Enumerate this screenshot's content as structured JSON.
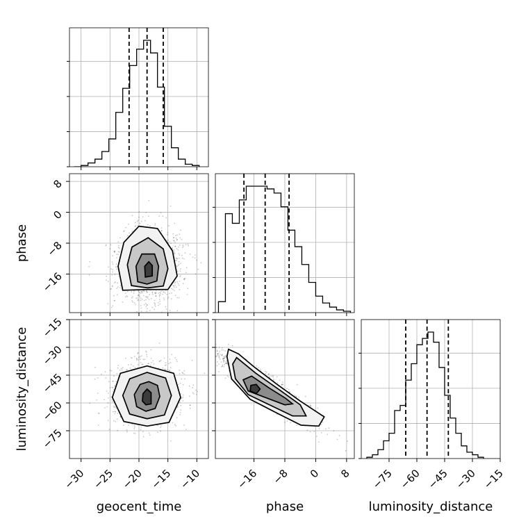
{
  "chart_data": {
    "type": "corner",
    "parameters": [
      "geocent_time",
      "phase",
      "luminosity_distance"
    ],
    "axis_labels": {
      "geocent_time": "geocent_time",
      "phase": "phase",
      "luminosity_distance": "luminosity_distance"
    },
    "ranges": {
      "geocent_time": [
        -32,
        -8
      ],
      "phase": [
        -26,
        10
      ],
      "luminosity_distance": [
        -90,
        -15
      ]
    },
    "ticks": {
      "geocent_time": {
        "values": [
          -30,
          -25,
          -20,
          -15,
          -10
        ],
        "labels": [
          "−30",
          "−25",
          "−20",
          "−15",
          "−10"
        ]
      },
      "phase": {
        "values": [
          -16,
          -8,
          0,
          8
        ],
        "labels": [
          "−16",
          "−8",
          "0",
          "8"
        ]
      },
      "luminosity_distance": {
        "values": [
          -75,
          -60,
          -45,
          -30,
          -15
        ],
        "labels": [
          "−75",
          "−60",
          "−45",
          "−30",
          "−15"
        ]
      }
    },
    "grid": true,
    "histograms": {
      "geocent_time": {
        "edges": [
          -31.2,
          -30.0,
          -28.8,
          -27.6,
          -26.4,
          -25.2,
          -24.0,
          -22.8,
          -21.6,
          -20.4,
          -19.2,
          -18.0,
          -16.8,
          -15.6,
          -14.4,
          -13.2,
          -12.0,
          -10.8,
          -9.6
        ],
        "counts": [
          0,
          0.01,
          0.03,
          0.06,
          0.12,
          0.22,
          0.43,
          0.62,
          0.8,
          0.93,
          1.0,
          0.9,
          0.63,
          0.32,
          0.15,
          0.06,
          0.02,
          0.01
        ]
      },
      "phase": {
        "edges": [
          -25.2,
          -23.4,
          -21.6,
          -19.8,
          -18.0,
          -16.2,
          -14.4,
          -12.6,
          -10.8,
          -9.0,
          -7.2,
          -5.4,
          -3.6,
          -1.8,
          0.0,
          1.8,
          3.6,
          5.4,
          7.2,
          9.0
        ],
        "counts": [
          0.08,
          0.72,
          0.65,
          0.82,
          0.92,
          0.92,
          0.92,
          0.9,
          0.87,
          0.77,
          0.6,
          0.48,
          0.35,
          0.22,
          0.12,
          0.07,
          0.04,
          0.02,
          0.01
        ]
      },
      "luminosity_distance": {
        "edges": [
          -87.0,
          -84.0,
          -81.0,
          -78.0,
          -75.0,
          -72.0,
          -69.0,
          -66.0,
          -63.0,
          -60.0,
          -57.0,
          -54.0,
          -51.0,
          -48.0,
          -45.0,
          -42.0,
          -39.0,
          -36.0,
          -33.0,
          -30.0,
          -27.0,
          -24.0
        ],
        "counts": [
          0.01,
          0.03,
          0.07,
          0.14,
          0.2,
          0.38,
          0.42,
          0.62,
          0.75,
          0.9,
          0.95,
          1.0,
          0.92,
          0.72,
          0.5,
          0.32,
          0.2,
          0.1,
          0.05,
          0.03,
          0.01
        ]
      }
    },
    "quantiles": {
      "geocent_time": [
        -21.7,
        -18.6,
        -15.8
      ],
      "phase": [
        -18.6,
        -13.1,
        -6.9
      ],
      "luminosity_distance": [
        -66.0,
        -54.5,
        -43.0
      ]
    },
    "pairs": [
      {
        "x": "geocent_time",
        "y": "phase",
        "center": [
          -18.4,
          -13.8
        ],
        "sigma": [
          2.9,
          5.0
        ],
        "rho": 0.0,
        "contours": [
          [
            [
              -22.8,
              -20.2
            ],
            [
              -23.6,
              -14.0
            ],
            [
              -22.6,
              -7.8
            ],
            [
              -20.0,
              -3.6
            ],
            [
              -16.8,
              -4.2
            ],
            [
              -14.2,
              -10.0
            ],
            [
              -13.4,
              -16.5
            ],
            [
              -15.0,
              -20.0
            ],
            [
              -18.3,
              -20.0
            ]
          ],
          [
            [
              -21.3,
              -19.0
            ],
            [
              -22.0,
              -13.6
            ],
            [
              -21.2,
              -9.0
            ],
            [
              -18.4,
              -6.6
            ],
            [
              -15.8,
              -9.5
            ],
            [
              -15.0,
              -14.6
            ],
            [
              -15.8,
              -19.1
            ],
            [
              -18.5,
              -19.6
            ]
          ],
          [
            [
              -20.2,
              -18.0
            ],
            [
              -20.5,
              -14.0
            ],
            [
              -19.5,
              -10.8
            ],
            [
              -17.3,
              -10.8
            ],
            [
              -16.6,
              -14.0
            ],
            [
              -16.9,
              -17.8
            ],
            [
              -18.6,
              -18.6
            ]
          ],
          [
            [
              -18.9,
              -16.8
            ],
            [
              -19.0,
              -14.0
            ],
            [
              -18.3,
              -12.8
            ],
            [
              -17.7,
              -13.8
            ],
            [
              -17.7,
              -16.5
            ]
          ]
        ]
      },
      {
        "x": "geocent_time",
        "y": "luminosity_distance",
        "center": [
          -18.6,
          -55.0
        ],
        "sigma": [
          2.9,
          8.0
        ],
        "rho": 0.0,
        "contours": [
          [
            [
              -24.6,
              -57.0
            ],
            [
              -23.2,
              -44.0
            ],
            [
              -18.6,
              -40.0
            ],
            [
              -14.0,
              -44.0
            ],
            [
              -12.8,
              -57.0
            ],
            [
              -14.8,
              -70.5
            ],
            [
              -18.6,
              -72.5
            ],
            [
              -22.6,
              -70.0
            ]
          ],
          [
            [
              -22.8,
              -56.0
            ],
            [
              -21.6,
              -47.0
            ],
            [
              -18.6,
              -43.5
            ],
            [
              -15.4,
              -46.5
            ],
            [
              -14.4,
              -56.0
            ],
            [
              -15.6,
              -66.5
            ],
            [
              -18.6,
              -68.5
            ],
            [
              -21.6,
              -66.0
            ]
          ],
          [
            [
              -20.8,
              -55.5
            ],
            [
              -19.8,
              -50.0
            ],
            [
              -18.3,
              -48.5
            ],
            [
              -16.8,
              -50.5
            ],
            [
              -16.4,
              -56.5
            ],
            [
              -17.2,
              -63.0
            ],
            [
              -18.8,
              -64.5
            ],
            [
              -20.4,
              -62.0
            ]
          ],
          [
            [
              -19.3,
              -55.0
            ],
            [
              -18.6,
              -52.5
            ],
            [
              -17.9,
              -54.5
            ],
            [
              -17.9,
              -60.5
            ],
            [
              -18.8,
              -61.0
            ],
            [
              -19.4,
              -59.0
            ]
          ]
        ]
      },
      {
        "x": "phase",
        "y": "luminosity_distance",
        "center": [
          -13.0,
          -52.0
        ],
        "sigma": [
          6.5,
          10.0
        ],
        "rho": -0.93,
        "contours": [
          [
            [
              -23.0,
              -35.0
            ],
            [
              -22.6,
              -31.0
            ],
            [
              -20.0,
              -33.5
            ],
            [
              -16.0,
              -40.5
            ],
            [
              -10.0,
              -50.0
            ],
            [
              -4.0,
              -59.0
            ],
            [
              2.2,
              -67.5
            ],
            [
              0.8,
              -72.5
            ],
            [
              -3.8,
              -72.0
            ],
            [
              -10.0,
              -65.5
            ],
            [
              -17.0,
              -58.0
            ],
            [
              -21.8,
              -47.0
            ]
          ],
          [
            [
              -21.5,
              -39.0
            ],
            [
              -20.5,
              -35.5
            ],
            [
              -15.5,
              -44.0
            ],
            [
              -9.0,
              -53.5
            ],
            [
              -4.0,
              -61.0
            ],
            [
              -2.5,
              -67.0
            ],
            [
              -6.0,
              -67.0
            ],
            [
              -11.5,
              -61.5
            ],
            [
              -17.5,
              -55.5
            ],
            [
              -20.8,
              -47.0
            ]
          ],
          [
            [
              -18.8,
              -47.5
            ],
            [
              -16.6,
              -45.5
            ],
            [
              -12.0,
              -52.0
            ],
            [
              -7.8,
              -57.5
            ],
            [
              -6.0,
              -60.5
            ],
            [
              -8.0,
              -61.0
            ],
            [
              -12.5,
              -57.5
            ],
            [
              -17.5,
              -53.5
            ]
          ],
          [
            [
              -16.8,
              -50.5
            ],
            [
              -15.4,
              -50.0
            ],
            [
              -14.4,
              -52.5
            ],
            [
              -15.4,
              -55.0
            ],
            [
              -17.0,
              -53.5
            ]
          ]
        ]
      }
    ]
  }
}
